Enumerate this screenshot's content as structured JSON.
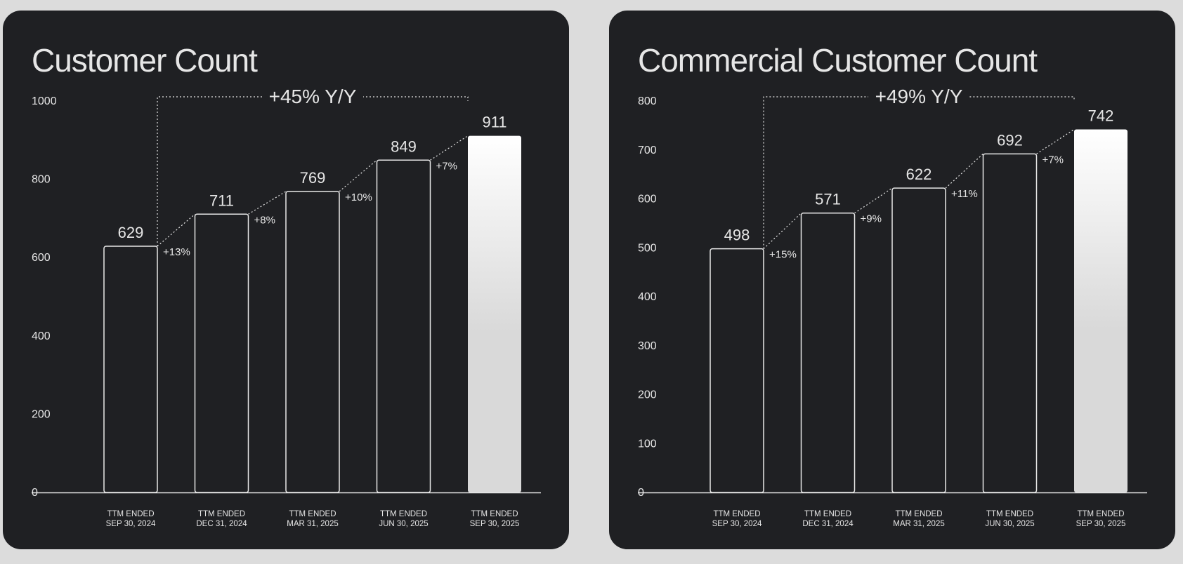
{
  "chart_data": [
    {
      "type": "bar",
      "title": "Customer Count",
      "categories": [
        [
          "TTM ENDED",
          "SEP 30, 2024"
        ],
        [
          "TTM ENDED",
          "DEC 31, 2024"
        ],
        [
          "TTM ENDED",
          "MAR 31, 2025"
        ],
        [
          "TTM ENDED",
          "JUN 30, 2025"
        ],
        [
          "TTM ENDED",
          "SEP 30, 2025"
        ]
      ],
      "values": [
        629,
        711,
        769,
        849,
        911
      ],
      "value_labels": [
        "629",
        "711",
        "769",
        "849",
        "911"
      ],
      "growth_labels": [
        "+13%",
        "+8%",
        "+10%",
        "+7%"
      ],
      "yoy_label": "+45% Y/Y",
      "ylim": [
        0,
        1000
      ],
      "yticks": [
        0,
        200,
        400,
        600,
        800,
        1000
      ],
      "highlight_last": true,
      "grid": false,
      "legend": "none"
    },
    {
      "type": "bar",
      "title": "Commercial Customer Count",
      "categories": [
        [
          "TTM ENDED",
          "SEP 30, 2024"
        ],
        [
          "TTM ENDED",
          "DEC 31, 2024"
        ],
        [
          "TTM ENDED",
          "MAR 31, 2025"
        ],
        [
          "TTM ENDED",
          "JUN 30, 2025"
        ],
        [
          "TTM ENDED",
          "SEP 30, 2025"
        ]
      ],
      "values": [
        498,
        571,
        622,
        692,
        742
      ],
      "value_labels": [
        "498",
        "571",
        "622",
        "692",
        "742"
      ],
      "growth_labels": [
        "+15%",
        "+9%",
        "+11%",
        "+7%"
      ],
      "yoy_label": "+49% Y/Y",
      "ylim": [
        0,
        800
      ],
      "yticks": [
        0,
        100,
        200,
        300,
        400,
        500,
        600,
        700,
        800
      ],
      "highlight_last": true,
      "grid": false,
      "legend": "none"
    }
  ],
  "colors": {
    "page_background": "#dcdcdc",
    "panel_background": "#1f2023",
    "text": "#e6e6e6",
    "bar_outline": "#e8e8e8",
    "highlight_top": "#ffffff",
    "highlight_bottom": "#d9d9d9"
  }
}
